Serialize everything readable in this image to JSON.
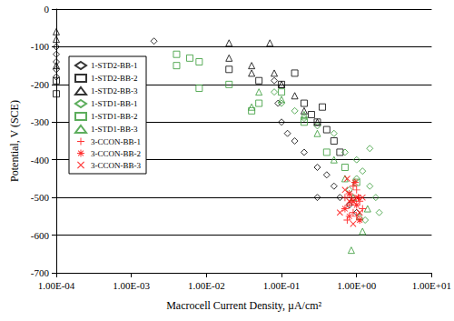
{
  "chart_data": {
    "type": "scatter",
    "x_label": "Macrocell Current Density, µA/cm²",
    "y_label": "Potential, V (SCE)",
    "log": "x",
    "grid": true,
    "legend": "upper left",
    "xlim": [
      0.0001,
      10
    ],
    "xticks": [
      {
        "value": 0.0001,
        "label": "1.00E-04"
      },
      {
        "value": 0.001,
        "label": "1.00E-03"
      },
      {
        "value": 0.01,
        "label": "1.00E-02"
      },
      {
        "value": 0.1,
        "label": "1.00E-01"
      },
      {
        "value": 1,
        "label": "1.00E+00"
      },
      {
        "value": 10,
        "label": "1.00E+01"
      }
    ],
    "ylim": [
      -700,
      0
    ],
    "yticks": [
      -700,
      -600,
      -500,
      -400,
      -300,
      -200,
      -100,
      0
    ],
    "series": [
      {
        "name": "1-STD2-BB-1",
        "color": "#000000",
        "marker": "diamond",
        "x": [
          0.0001,
          0.0001,
          0.0001,
          0.0001,
          0.0001,
          0.002,
          0.08,
          0.09,
          0.1,
          0.12,
          0.15,
          0.2,
          0.3,
          0.4,
          0.5,
          0.6,
          0.3,
          0.8,
          1.0
        ],
        "values": [
          -100,
          -120,
          -140,
          -160,
          -180,
          -85,
          -190,
          -250,
          -300,
          -330,
          -350,
          -380,
          -420,
          -440,
          -470,
          -500,
          -500,
          -520,
          -540
        ]
      },
      {
        "name": "1-STD2-BB-2",
        "color": "#000000",
        "marker": "square",
        "x": [
          0.0001,
          0.0001,
          0.02,
          0.05,
          0.1,
          0.15,
          0.2,
          0.25,
          0.3,
          0.35,
          0.4,
          0.5,
          0.6
        ],
        "values": [
          -225,
          -190,
          -160,
          -190,
          -200,
          -170,
          -250,
          -280,
          -300,
          -260,
          -320,
          -350,
          -380
        ]
      },
      {
        "name": "1-STD2-BB-3",
        "color": "#000000",
        "marker": "triangle",
        "x": [
          0.0001,
          0.0001,
          0.0001,
          0.02,
          0.02,
          0.04,
          0.04,
          0.07,
          0.08,
          0.1,
          0.15,
          0.2,
          0.3
        ],
        "values": [
          -60,
          -80,
          -150,
          -90,
          -130,
          -150,
          -170,
          -90,
          -170,
          -200,
          -230,
          -270,
          -300
        ]
      },
      {
        "name": "1-STD1-BB-1",
        "color": "#339933",
        "marker": "diamond",
        "x": [
          0.08,
          0.1,
          0.15,
          0.2,
          0.3,
          0.5,
          0.7,
          1.0,
          1.2,
          1.5,
          1.8,
          2.0,
          1.5,
          1.0,
          0.8,
          1.3
        ],
        "values": [
          -220,
          -250,
          -270,
          -290,
          -310,
          -330,
          -380,
          -400,
          -430,
          -470,
          -500,
          -540,
          -370,
          -450,
          -480,
          -560
        ]
      },
      {
        "name": "1-STD1-BB-2",
        "color": "#339933",
        "marker": "square",
        "x": [
          0.004,
          0.004,
          0.006,
          0.008,
          0.008,
          0.02,
          0.04,
          0.05,
          0.1,
          0.2,
          0.4,
          0.7,
          1.0
        ],
        "values": [
          -120,
          -150,
          -130,
          -140,
          -210,
          -200,
          -270,
          -250,
          -220,
          -300,
          -380,
          -420,
          -460
        ]
      },
      {
        "name": "1-STD1-BB-3",
        "color": "#339933",
        "marker": "triangle",
        "x": [
          0.04,
          0.05,
          0.1,
          0.2,
          0.3,
          0.5,
          0.7,
          0.9,
          1.1,
          0.85,
          1.2,
          1.4
        ],
        "values": [
          -260,
          -220,
          -240,
          -280,
          -330,
          -400,
          -450,
          -500,
          -550,
          -640,
          -590,
          -530
        ]
      },
      {
        "name": "3-CCON-BB-1",
        "color": "#ff0000",
        "marker": "plus",
        "x": [
          0.7,
          0.8,
          0.9,
          1.0,
          1.1,
          0.9,
          0.75,
          1.0,
          1.2,
          0.85
        ],
        "values": [
          -500,
          -520,
          -540,
          -480,
          -510,
          -470,
          -560,
          -550,
          -530,
          -500
        ]
      },
      {
        "name": "3-CCON-BB-2",
        "color": "#ff0000",
        "marker": "star",
        "x": [
          0.7,
          0.8,
          0.9,
          1.0,
          1.1,
          0.95,
          0.8,
          1.05
        ],
        "values": [
          -530,
          -490,
          -510,
          -520,
          -560,
          -460,
          -550,
          -500
        ]
      },
      {
        "name": "3-CCON-BB-3",
        "color": "#ff0000",
        "marker": "x",
        "x": [
          0.6,
          0.7,
          0.8,
          0.9,
          1.0,
          1.1,
          1.2,
          0.75
        ],
        "values": [
          -540,
          -480,
          -510,
          -570,
          -500,
          -540,
          -500,
          -450
        ]
      }
    ]
  }
}
